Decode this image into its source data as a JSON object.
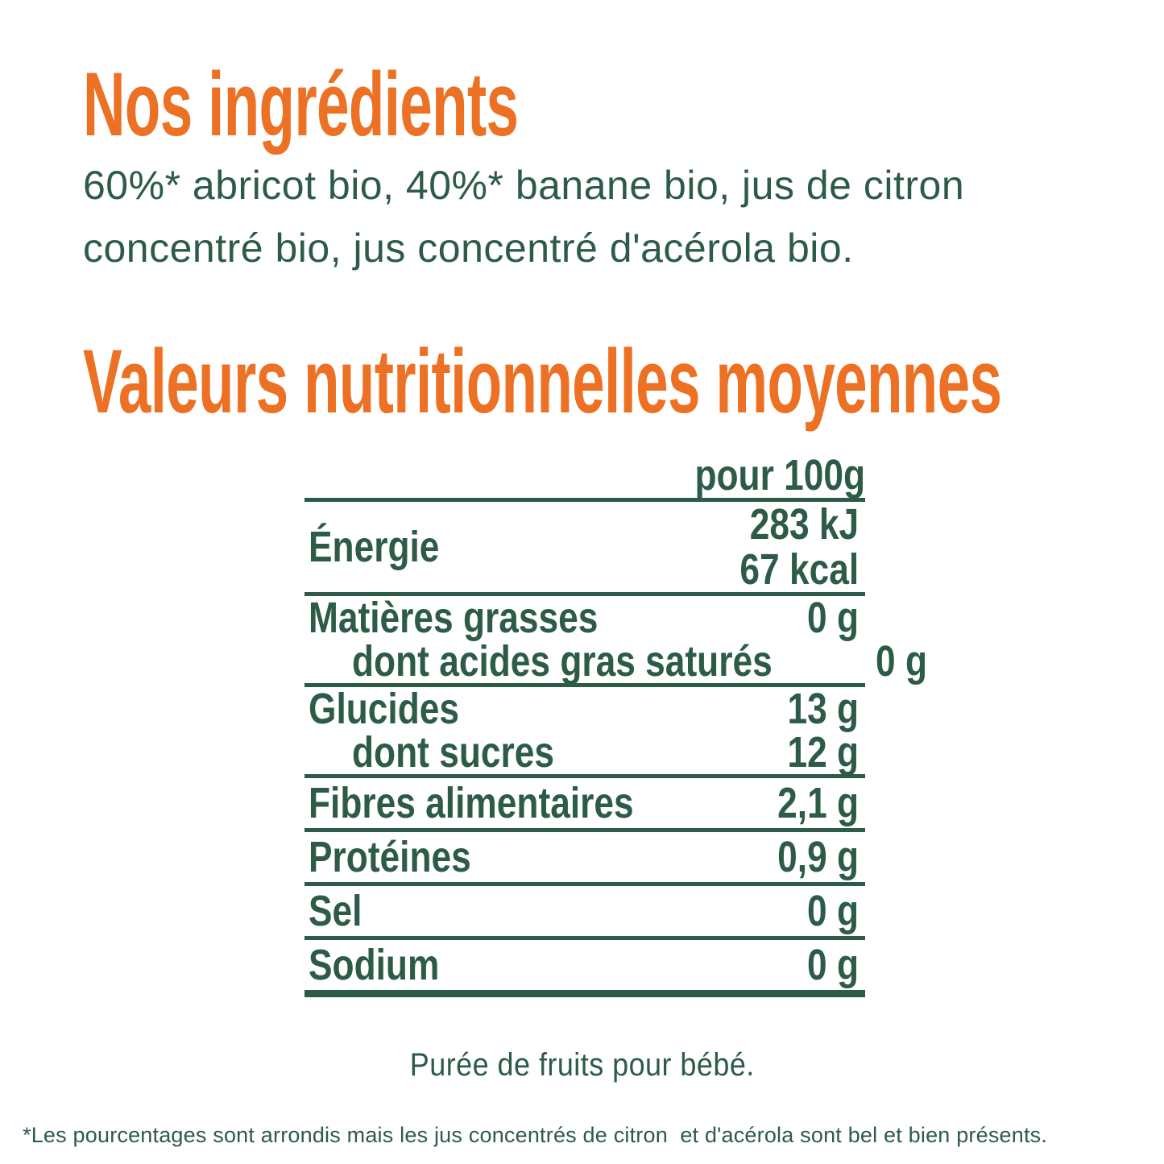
{
  "page": {
    "background": "#FFFFFF",
    "accent_orange": "#EC7124",
    "text_green": "#2D5C46"
  },
  "ingredients": {
    "heading": "Nos ingrédients",
    "lines": [
      "60%* abricot bio, 40%* banane bio, jus de citron",
      "concentré bio, jus concentré d'acérola bio."
    ]
  },
  "nutrition": {
    "heading": "Valeurs nutritionnelles moyennes",
    "column_header": "pour 100g",
    "sections": [
      {
        "type": "energy",
        "rows": [
          {
            "label": "Énergie",
            "values": [
              "283 kJ",
              "67 kcal"
            ]
          }
        ]
      },
      {
        "type": "double",
        "rows": [
          {
            "label": "Matières grasses",
            "value": "0 g"
          },
          {
            "label": "dont acides gras saturés",
            "value": "0 g",
            "indent": true
          }
        ]
      },
      {
        "type": "double",
        "rows": [
          {
            "label": "Glucides",
            "value": "13 g"
          },
          {
            "label": "dont sucres",
            "value": "12 g",
            "indent": true
          }
        ]
      },
      {
        "type": "single",
        "rows": [
          {
            "label": "Fibres alimentaires",
            "value": "2,1 g"
          }
        ]
      },
      {
        "type": "single",
        "rows": [
          {
            "label": "Protéines",
            "value": "0,9 g"
          }
        ]
      },
      {
        "type": "single",
        "rows": [
          {
            "label": "Sel",
            "value": "0 g"
          }
        ]
      },
      {
        "type": "single",
        "rows": [
          {
            "label": "Sodium",
            "value": "0 g"
          }
        ]
      }
    ]
  },
  "footer": {
    "product": "Purée de fruits pour bébé.",
    "footnote": "*Les pourcentages sont arrondis mais les jus concentrés de citron  et d'acérola sont bel et bien présents."
  }
}
